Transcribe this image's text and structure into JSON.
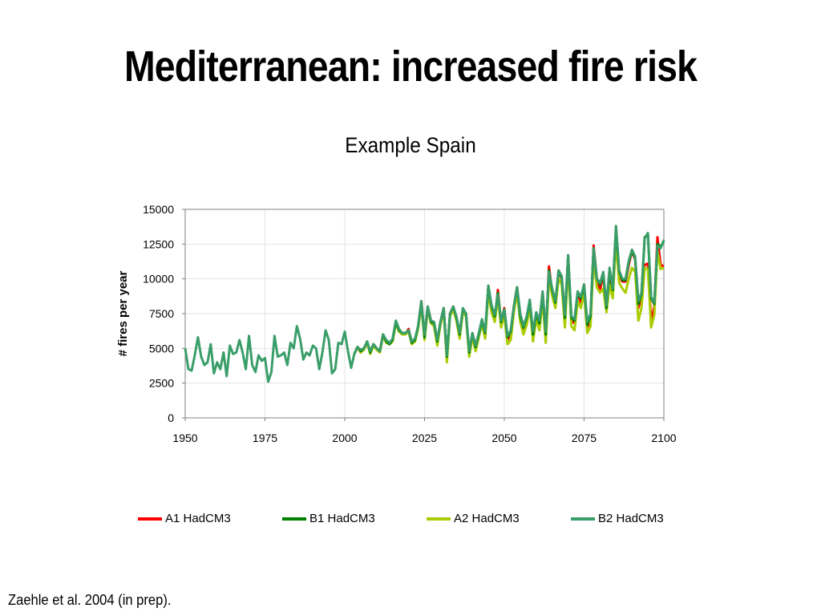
{
  "slide": {
    "title": "Mediterranean: increased fire risk",
    "subtitle": "Example Spain",
    "citation": "Zaehle et al. 2004 (in prep)."
  },
  "chart_data": {
    "type": "line",
    "ylabel": "# fires per year",
    "xlabel": "",
    "xlim": [
      1950,
      2100
    ],
    "ylim": [
      0,
      15000
    ],
    "xticks": [
      1950,
      1975,
      2000,
      2025,
      2050,
      2075,
      2100
    ],
    "yticks": [
      0,
      2500,
      5000,
      7500,
      10000,
      12500,
      15000
    ],
    "x_tick_labels": [
      "1950",
      "1975",
      "2000",
      "2025",
      "2050",
      "2075",
      "2100"
    ],
    "y_tick_labels": [
      "0",
      "2500",
      "5000",
      "7500",
      "10000",
      "12500",
      "15000"
    ],
    "grid": true,
    "legend_position": "bottom",
    "series_colors": {
      "A1 HadCM3": "#ff0000",
      "B1 HadCM3": "#008000",
      "A2 HadCM3": "#aacc00",
      "B2 HadCM3": "#3a9e6a"
    },
    "historical": {
      "x": [
        1950,
        1951,
        1952,
        1953,
        1954,
        1955,
        1956,
        1957,
        1958,
        1959,
        1960,
        1961,
        1962,
        1963,
        1964,
        1965,
        1966,
        1967,
        1968,
        1969,
        1970,
        1971,
        1972,
        1973,
        1974,
        1975,
        1976,
        1977,
        1978,
        1979,
        1980,
        1981,
        1982,
        1983,
        1984,
        1985,
        1986,
        1987,
        1988,
        1989,
        1990,
        1991,
        1992,
        1993,
        1994,
        1995,
        1996,
        1997,
        1998,
        1999,
        2000,
        2001,
        2002,
        2003
      ],
      "y": [
        5000,
        3500,
        3400,
        4500,
        5800,
        4400,
        3800,
        4000,
        5300,
        3200,
        4000,
        3500,
        4700,
        3000,
        5200,
        4600,
        4700,
        5600,
        4700,
        3500,
        5900,
        3800,
        3300,
        4500,
        4100,
        4300,
        2600,
        3300,
        5900,
        4400,
        4500,
        4700,
        3800,
        5400,
        5000,
        6600,
        5700,
        4200,
        4700,
        4500,
        5200,
        5000,
        3500,
        4700,
        6300,
        5600,
        3200,
        3500,
        5400,
        5300,
        6200,
        4800,
        3600,
        4600
      ]
    },
    "series": [
      {
        "name": "A1 HadCM3",
        "x": [
          2003,
          2004,
          2005,
          2006,
          2007,
          2008,
          2009,
          2010,
          2011,
          2012,
          2013,
          2014,
          2015,
          2016,
          2017,
          2018,
          2019,
          2020,
          2021,
          2022,
          2023,
          2024,
          2025,
          2026,
          2027,
          2028,
          2029,
          2030,
          2031,
          2032,
          2033,
          2034,
          2035,
          2036,
          2037,
          2038,
          2039,
          2040,
          2041,
          2042,
          2043,
          2044,
          2045,
          2046,
          2047,
          2048,
          2049,
          2050,
          2051,
          2052,
          2053,
          2054,
          2055,
          2056,
          2057,
          2058,
          2059,
          2060,
          2061,
          2062,
          2063,
          2064,
          2065,
          2066,
          2067,
          2068,
          2069,
          2070,
          2071,
          2072,
          2073,
          2074,
          2075,
          2076,
          2077,
          2078,
          2079,
          2080,
          2081,
          2082,
          2083,
          2084,
          2085,
          2086,
          2087,
          2088,
          2089,
          2090,
          2091,
          2092,
          2093,
          2094,
          2095,
          2096,
          2097,
          2098,
          2099,
          2100
        ],
        "y": [
          4600,
          5100,
          4700,
          5000,
          5400,
          4700,
          5300,
          5000,
          4800,
          6000,
          5500,
          5400,
          5600,
          6900,
          6300,
          6000,
          6000,
          6400,
          5400,
          5600,
          6500,
          8400,
          5900,
          8000,
          7000,
          6800,
          5500,
          6900,
          7900,
          4300,
          7500,
          8000,
          7200,
          6000,
          7800,
          7500,
          4600,
          6000,
          5000,
          6000,
          7000,
          6000,
          9500,
          7900,
          7000,
          9200,
          6800,
          7900,
          5600,
          6000,
          8000,
          9400,
          7200,
          6300,
          7000,
          8500,
          5800,
          7500,
          6800,
          9000,
          5800,
          10900,
          9000,
          8100,
          10600,
          10000,
          7000,
          11700,
          7000,
          6800,
          9000,
          8300,
          9600,
          6500,
          7100,
          12400,
          10000,
          9200,
          10300,
          7800,
          10000,
          9000,
          13500,
          10200,
          9800,
          9800,
          11000,
          12000,
          11400,
          7900,
          8700,
          11000,
          11100,
          7000,
          8000,
          13000,
          11000,
          10900
        ]
      },
      {
        "name": "B1 HadCM3",
        "x": [
          2003,
          2004,
          2005,
          2006,
          2007,
          2008,
          2009,
          2010,
          2011,
          2012,
          2013,
          2014,
          2015,
          2016,
          2017,
          2018,
          2019,
          2020,
          2021,
          2022,
          2023,
          2024,
          2025,
          2026,
          2027,
          2028,
          2029,
          2030,
          2031,
          2032,
          2033,
          2034,
          2035,
          2036,
          2037,
          2038,
          2039,
          2040,
          2041,
          2042,
          2043,
          2044,
          2045,
          2046,
          2047,
          2048,
          2049,
          2050,
          2051,
          2052,
          2053,
          2054,
          2055,
          2056,
          2057,
          2058,
          2059,
          2060,
          2061,
          2062,
          2063,
          2064,
          2065,
          2066,
          2067,
          2068,
          2069,
          2070,
          2071,
          2072,
          2073,
          2074,
          2075,
          2076,
          2077,
          2078,
          2079,
          2080,
          2081,
          2082,
          2083,
          2084,
          2085,
          2086,
          2087,
          2088,
          2089,
          2090,
          2091,
          2092,
          2093,
          2094,
          2095,
          2096,
          2097,
          2098,
          2099,
          2100
        ],
        "y": [
          4600,
          5100,
          4800,
          5000,
          5500,
          4700,
          5300,
          5000,
          4800,
          6000,
          5500,
          5300,
          5600,
          6900,
          6300,
          6100,
          6100,
          6300,
          5400,
          5600,
          6600,
          8300,
          5800,
          8000,
          6900,
          6800,
          5500,
          6900,
          7900,
          4400,
          7500,
          8000,
          7200,
          6000,
          7800,
          7500,
          4700,
          6100,
          5100,
          6000,
          7000,
          6100,
          9500,
          8000,
          7300,
          9000,
          6900,
          7800,
          5800,
          6200,
          8000,
          9400,
          7300,
          6500,
          7200,
          8400,
          6000,
          7500,
          6800,
          9000,
          6000,
          10600,
          9200,
          8300,
          10500,
          10100,
          7200,
          11600,
          7200,
          7000,
          9000,
          8600,
          9500,
          6700,
          7300,
          12200,
          10000,
          9600,
          10400,
          7900,
          10600,
          9200,
          13700,
          10500,
          9900,
          9900,
          11200,
          12000,
          11500,
          8200,
          8900,
          13000,
          13200,
          8600,
          8200,
          12500,
          12300,
          12700
        ]
      },
      {
        "name": "A2 HadCM3",
        "x": [
          2003,
          2004,
          2005,
          2006,
          2007,
          2008,
          2009,
          2010,
          2011,
          2012,
          2013,
          2014,
          2015,
          2016,
          2017,
          2018,
          2019,
          2020,
          2021,
          2022,
          2023,
          2024,
          2025,
          2026,
          2027,
          2028,
          2029,
          2030,
          2031,
          2032,
          2033,
          2034,
          2035,
          2036,
          2037,
          2038,
          2039,
          2040,
          2041,
          2042,
          2043,
          2044,
          2045,
          2046,
          2047,
          2048,
          2049,
          2050,
          2051,
          2052,
          2053,
          2054,
          2055,
          2056,
          2057,
          2058,
          2059,
          2060,
          2061,
          2062,
          2063,
          2064,
          2065,
          2066,
          2067,
          2068,
          2069,
          2070,
          2071,
          2072,
          2073,
          2074,
          2075,
          2076,
          2077,
          2078,
          2079,
          2080,
          2081,
          2082,
          2083,
          2084,
          2085,
          2086,
          2087,
          2088,
          2089,
          2090,
          2091,
          2092,
          2093,
          2094,
          2095,
          2096,
          2097,
          2098,
          2099,
          2100
        ],
        "y": [
          4600,
          5100,
          4700,
          4900,
          5400,
          4600,
          5200,
          4900,
          4700,
          5900,
          5400,
          5300,
          5500,
          6800,
          6200,
          6000,
          6000,
          6200,
          5300,
          5500,
          6400,
          8100,
          5600,
          7800,
          6800,
          6600,
          5200,
          6700,
          7700,
          4000,
          7300,
          7800,
          7000,
          5700,
          7600,
          7300,
          4400,
          5800,
          4800,
          5800,
          6800,
          5700,
          9000,
          7600,
          6900,
          8700,
          6500,
          7400,
          5300,
          5600,
          7600,
          9000,
          6900,
          6000,
          6700,
          8000,
          5500,
          7100,
          6300,
          8500,
          5400,
          10000,
          8800,
          7900,
          10000,
          9600,
          6500,
          11000,
          6600,
          6300,
          8400,
          7900,
          9000,
          6100,
          6600,
          11500,
          9400,
          9000,
          9300,
          7600,
          9600,
          8600,
          12700,
          9700,
          9300,
          9000,
          10000,
          10800,
          10500,
          7000,
          7900,
          10800,
          10700,
          6500,
          7400,
          12000,
          10700,
          10800
        ]
      },
      {
        "name": "B2 HadCM3",
        "x": [
          2003,
          2004,
          2005,
          2006,
          2007,
          2008,
          2009,
          2010,
          2011,
          2012,
          2013,
          2014,
          2015,
          2016,
          2017,
          2018,
          2019,
          2020,
          2021,
          2022,
          2023,
          2024,
          2025,
          2026,
          2027,
          2028,
          2029,
          2030,
          2031,
          2032,
          2033,
          2034,
          2035,
          2036,
          2037,
          2038,
          2039,
          2040,
          2041,
          2042,
          2043,
          2044,
          2045,
          2046,
          2047,
          2048,
          2049,
          2050,
          2051,
          2052,
          2053,
          2054,
          2055,
          2056,
          2057,
          2058,
          2059,
          2060,
          2061,
          2062,
          2063,
          2064,
          2065,
          2066,
          2067,
          2068,
          2069,
          2070,
          2071,
          2072,
          2073,
          2074,
          2075,
          2076,
          2077,
          2078,
          2079,
          2080,
          2081,
          2082,
          2083,
          2084,
          2085,
          2086,
          2087,
          2088,
          2089,
          2090,
          2091,
          2092,
          2093,
          2094,
          2095,
          2096,
          2097,
          2098,
          2099,
          2100
        ],
        "y": [
          4600,
          5100,
          4900,
          5000,
          5500,
          4800,
          5300,
          5000,
          4800,
          6000,
          5600,
          5400,
          5700,
          7000,
          6400,
          6100,
          6100,
          6300,
          5500,
          5700,
          6600,
          8400,
          6000,
          8000,
          7000,
          6900,
          5600,
          6900,
          7900,
          4500,
          7500,
          8000,
          7300,
          6100,
          7900,
          7500,
          4800,
          6100,
          5200,
          6100,
          7100,
          6200,
          9500,
          8100,
          7400,
          8900,
          7000,
          7800,
          5900,
          6300,
          8000,
          9400,
          7500,
          6600,
          7300,
          8500,
          6200,
          7600,
          7000,
          9100,
          6200,
          10500,
          9300,
          8400,
          10600,
          10200,
          7400,
          11700,
          7300,
          7100,
          9100,
          8700,
          9600,
          6900,
          7500,
          12200,
          10000,
          9700,
          10500,
          8100,
          10800,
          9300,
          13800,
          10600,
          10000,
          10000,
          11300,
          12100,
          11600,
          8400,
          9000,
          12900,
          13300,
          8700,
          8300,
          12400,
          12200,
          12800
        ]
      }
    ]
  }
}
